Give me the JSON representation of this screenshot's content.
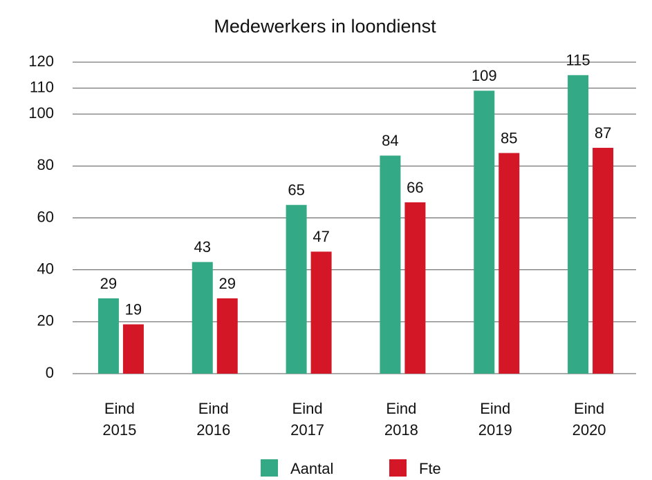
{
  "chart_data": {
    "type": "bar",
    "title": "Medewerkers in loondienst",
    "categories": [
      "Eind 2015",
      "Eind 2016",
      "Eind 2017",
      "Eind 2018",
      "Eind 2019",
      "Eind 2020"
    ],
    "series": [
      {
        "name": "Aantal",
        "color": "#34a985",
        "values": [
          29,
          43,
          65,
          84,
          109,
          115
        ]
      },
      {
        "name": "Fte",
        "color": "#d31727",
        "values": [
          19,
          29,
          47,
          66,
          85,
          87
        ]
      }
    ],
    "ylim": [
      0,
      120
    ],
    "yticks": [
      0,
      20,
      40,
      60,
      80,
      100,
      110,
      120
    ],
    "grid": true
  }
}
